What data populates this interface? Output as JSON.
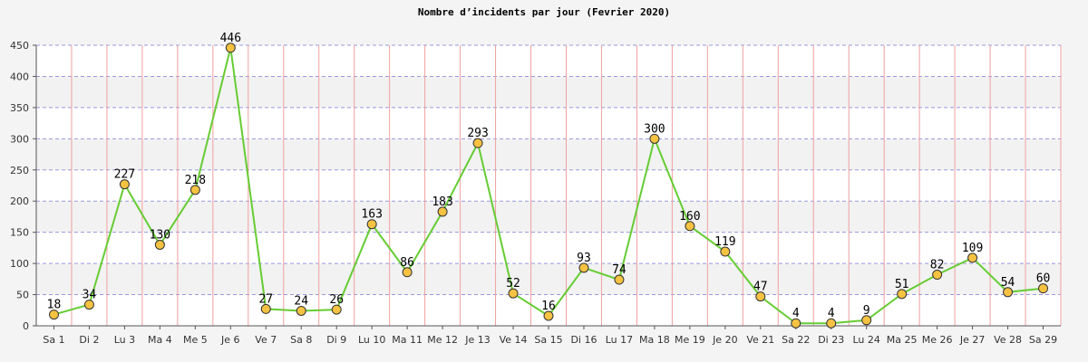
{
  "chart_data": {
    "type": "line",
    "title": "Nombre d’incidents par jour (Fevrier 2020)",
    "xlabel": "",
    "ylabel": "",
    "ylim": [
      0,
      450
    ],
    "yticks": [
      0,
      50,
      100,
      150,
      200,
      250,
      300,
      350,
      400,
      450
    ],
    "categories": [
      "Sa 1",
      "Di 2",
      "Lu 3",
      "Ma 4",
      "Me 5",
      "Je 6",
      "Ve 7",
      "Sa 8",
      "Di 9",
      "Lu 10",
      "Ma 11",
      "Me 12",
      "Je 13",
      "Ve 14",
      "Sa 15",
      "Di 16",
      "Lu 17",
      "Ma 18",
      "Me 19",
      "Je 20",
      "Ve 21",
      "Sa 22",
      "Di 23",
      "Lu 24",
      "Ma 25",
      "Me 26",
      "Je 27",
      "Ve 28",
      "Sa 29"
    ],
    "series": [
      {
        "values": [
          18,
          34,
          227,
          130,
          218,
          446,
          27,
          24,
          26,
          163,
          86,
          183,
          293,
          52,
          16,
          93,
          74,
          300,
          160,
          119,
          47,
          4,
          4,
          9,
          51,
          82,
          109,
          54,
          60
        ]
      }
    ],
    "grid": true,
    "colors": {
      "line": "#66cc33",
      "marker_fill": "#f5c242",
      "marker_stroke": "#333333",
      "vgrid": "#f0a0a0",
      "hgrid": "#9999dd",
      "band_light": "#ffffff",
      "band_dark": "#f2f2f2"
    }
  }
}
